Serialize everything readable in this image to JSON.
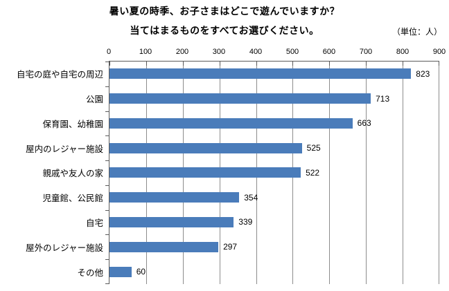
{
  "title": {
    "line1": "暑い夏の時季、お子さまはどこで遊んでいますか？",
    "line2": "当てはまるものをすべてお選びください。",
    "unit": "（単位：人）"
  },
  "chart_data": {
    "type": "bar",
    "orientation": "horizontal",
    "title": "暑い夏の時季、お子さまはどこで遊んでいますか？ 当てはまるものをすべてお選びください。",
    "unit_note": "（単位：人）",
    "categories": [
      "自宅の庭や自宅の周辺",
      "公園",
      "保育園、幼稚園",
      "屋内のレジャー施設",
      "親戚や友人の家",
      "児童館、公民館",
      "自宅",
      "屋外のレジャー施設",
      "その他"
    ],
    "values": [
      823,
      713,
      663,
      525,
      522,
      354,
      339,
      297,
      60
    ],
    "xlabel": "",
    "ylabel": "",
    "xlim": [
      0,
      900
    ],
    "xticks": [
      0,
      100,
      200,
      300,
      400,
      500,
      600,
      700,
      800,
      900
    ],
    "grid": true,
    "data_labels": true,
    "legend": "none",
    "bar_color": "#4a7cba",
    "gridline_color": "#8c8c8c",
    "axis_color": "#595959"
  }
}
